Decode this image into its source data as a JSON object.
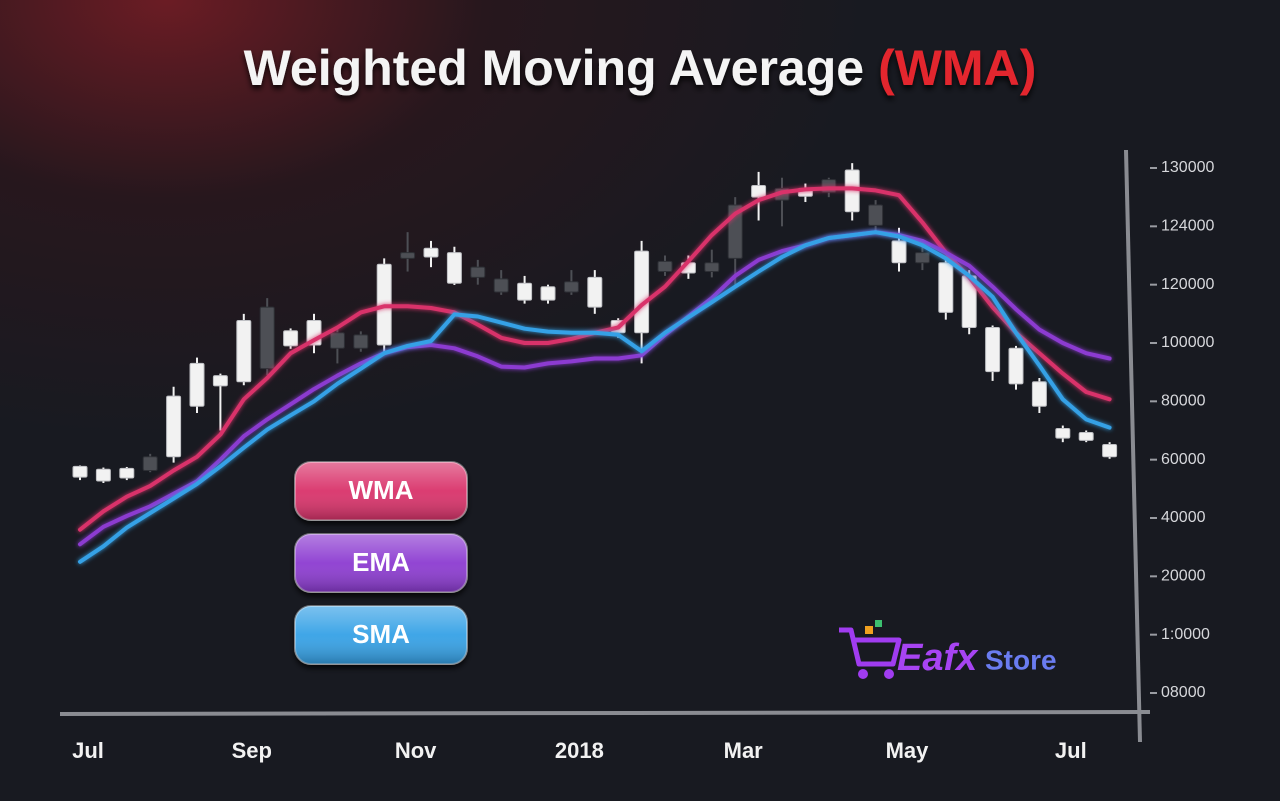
{
  "chart_data": {
    "type": "candlestick",
    "title": "Weighted Moving Average",
    "title_highlight": "(WMA)",
    "categories": [
      "Jul",
      null,
      null,
      null,
      null,
      null,
      null,
      "Sep",
      null,
      null,
      null,
      null,
      null,
      null,
      "Nov",
      null,
      null,
      null,
      null,
      null,
      null,
      "2018",
      null,
      null,
      null,
      null,
      null,
      null,
      "Mar",
      null,
      null,
      null,
      null,
      null,
      null,
      "May",
      null,
      null,
      null,
      null,
      null,
      null,
      "Jul",
      null,
      null
    ],
    "open": [
      54000,
      52700,
      53700,
      61000,
      61000,
      78300,
      85300,
      86700,
      112300,
      99000,
      99300,
      103500,
      102800,
      99300,
      122200,
      121900,
      120100,
      121200,
      120400,
      114700,
      114700,
      120200,
      112300,
      103500,
      103500,
      121600,
      120800,
      121500,
      126200,
      127000,
      127900,
      127100,
      128800,
      125500,
      126200,
      121500,
      122200,
      110500,
      105300,
      90200,
      86000,
      78300,
      67400,
      66600,
      61000
    ],
    "high": [
      58000,
      57300,
      57500,
      62000,
      85000,
      95000,
      89500,
      110000,
      115400,
      105000,
      110000,
      105000,
      104000,
      121800,
      123600,
      123000,
      122600,
      121700,
      121000,
      120600,
      120000,
      121000,
      121000,
      108500,
      123000,
      122000,
      122000,
      122400,
      127000,
      129600,
      129000,
      128400,
      129000,
      130500,
      126700,
      123900,
      123000,
      121800,
      121000,
      106000,
      99000,
      88000,
      71700,
      70000,
      66000
    ],
    "low": [
      53000,
      52000,
      53000,
      55700,
      59000,
      76000,
      70000,
      85500,
      89000,
      98000,
      96500,
      93000,
      97000,
      96500,
      120900,
      121200,
      119900,
      120000,
      116500,
      113500,
      113500,
      116500,
      110000,
      101800,
      93000,
      120600,
      120400,
      120500,
      120000,
      124600,
      124000,
      126500,
      127000,
      124600,
      123600,
      120900,
      121000,
      108000,
      103000,
      87000,
      84000,
      76000,
      66000,
      66000,
      60300
    ],
    "close": [
      57700,
      56700,
      57000,
      56300,
      81800,
      93000,
      88800,
      107700,
      91200,
      104200,
      107700,
      98200,
      98200,
      121400,
      121800,
      122500,
      122200,
      120500,
      117500,
      120100,
      119300,
      117500,
      120500,
      107700,
      122300,
      120900,
      121500,
      120900,
      121800,
      128200,
      126700,
      127900,
      127500,
      129800,
      124100,
      123000,
      121500,
      121500,
      120600,
      105300,
      98200,
      86700,
      70700,
      69300,
      65200
    ],
    "up_color": "#f2f2f2",
    "down_color": "#4d4f55",
    "series": [
      {
        "name": "WMA",
        "color": "#d9336a",
        "values": [
          36000,
          42300,
          47300,
          51000,
          56300,
          61000,
          68600,
          80700,
          88000,
          96500,
          101000,
          105300,
          110500,
          112600,
          112600,
          112000,
          110500,
          106300,
          101800,
          100000,
          100000,
          101400,
          103500,
          105300,
          113000,
          119300,
          121600,
          123400,
          125300,
          126700,
          127500,
          127800,
          127900,
          127900,
          127700,
          127200,
          124400,
          122200,
          120500,
          112300,
          103500,
          96500,
          89500,
          83200,
          80700
        ]
      },
      {
        "name": "EMA",
        "color": "#8c3bd1",
        "values": [
          31000,
          37000,
          40700,
          44000,
          48300,
          52600,
          60000,
          68000,
          73800,
          79000,
          84200,
          88800,
          93000,
          96500,
          98600,
          99300,
          98200,
          95400,
          91900,
          91600,
          93000,
          93700,
          94700,
          94700,
          95800,
          102800,
          109100,
          115400,
          120600,
          121700,
          122300,
          122700,
          123200,
          123400,
          123600,
          123400,
          123000,
          122200,
          121300,
          119300,
          111600,
          104600,
          100000,
          96500,
          94700
        ]
      },
      {
        "name": "SMA",
        "color": "#35a1e6",
        "values": [
          25000,
          30300,
          36700,
          41700,
          46700,
          51700,
          57700,
          64100,
          70300,
          75200,
          80000,
          86000,
          91200,
          96500,
          99000,
          100700,
          109800,
          109100,
          107000,
          104900,
          103900,
          103500,
          103500,
          102800,
          97200,
          103500,
          108800,
          114000,
          119300,
          120900,
          121900,
          122700,
          123200,
          123400,
          123600,
          123300,
          122700,
          121800,
          120600,
          115800,
          103500,
          92300,
          80700,
          73800,
          71000
        ]
      }
    ],
    "ylim": [
      8000,
      130000
    ],
    "yticks": [
      130000,
      124000,
      120000,
      100000,
      80000,
      60000,
      40000,
      20000,
      {
        "value": 10000,
        "label": "1:0000"
      },
      {
        "value": 8000,
        "label": "08000"
      }
    ],
    "y_axis_side": "right",
    "logo": {
      "brand": "Eafx",
      "suffix": "Store"
    }
  }
}
